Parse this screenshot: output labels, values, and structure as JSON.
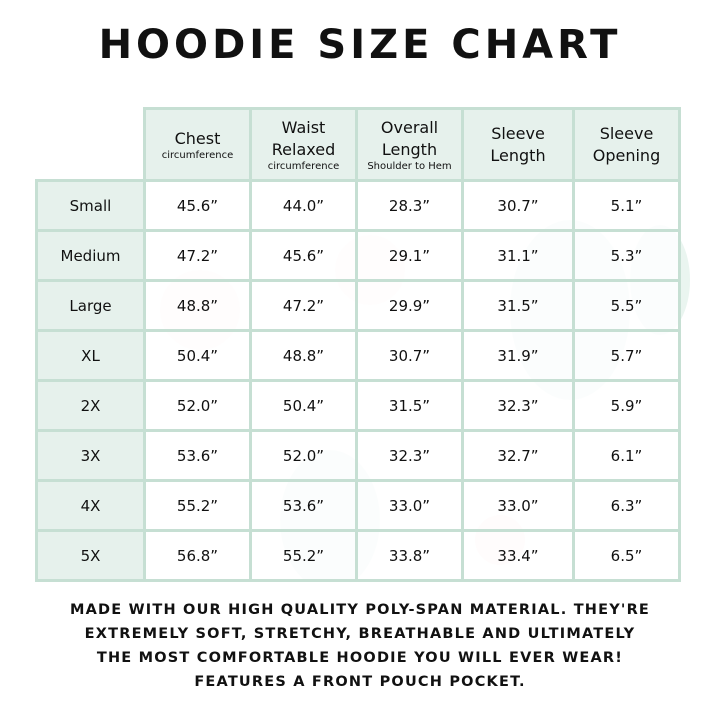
{
  "title": "HOODIE SIZE CHART",
  "colors": {
    "border": "#c6dfd3",
    "header_bg": "#e6f1ec"
  },
  "columns": [
    {
      "label": "Chest",
      "sub": "circumference"
    },
    {
      "label": "Waist Relaxed",
      "sub": "circumference"
    },
    {
      "label": "Overall Length",
      "sub": "Shoulder to Hem"
    },
    {
      "label": "Sleeve Length",
      "sub": ""
    },
    {
      "label": "Sleeve Opening",
      "sub": ""
    }
  ],
  "rows": [
    {
      "size": "Small",
      "values": [
        "45.6”",
        "44.0”",
        "28.3”",
        "30.7”",
        "5.1”"
      ]
    },
    {
      "size": "Medium",
      "values": [
        "47.2”",
        "45.6”",
        "29.1”",
        "31.1”",
        "5.3”"
      ]
    },
    {
      "size": "Large",
      "values": [
        "48.8”",
        "47.2”",
        "29.9”",
        "31.5”",
        "5.5”"
      ]
    },
    {
      "size": "XL",
      "values": [
        "50.4”",
        "48.8”",
        "30.7”",
        "31.9”",
        "5.7”"
      ]
    },
    {
      "size": "2X",
      "values": [
        "52.0”",
        "50.4”",
        "31.5”",
        "32.3”",
        "5.9”"
      ]
    },
    {
      "size": "3X",
      "values": [
        "53.6”",
        "52.0”",
        "32.3”",
        "32.7”",
        "6.1”"
      ]
    },
    {
      "size": "4X",
      "values": [
        "55.2”",
        "53.6”",
        "33.0”",
        "33.0”",
        "6.3”"
      ]
    },
    {
      "size": "5X",
      "values": [
        "56.8”",
        "55.2”",
        "33.8”",
        "33.4”",
        "6.5”"
      ]
    }
  ],
  "footer": [
    "MADE WITH OUR HIGH QUALITY POLY-SPAN MATERIAL. THEY'RE",
    "EXTREMELY SOFT, STRETCHY, BREATHABLE AND ULTIMATELY",
    "THE MOST COMFORTABLE HOODIE YOU WILL EVER WEAR!",
    "FEATURES A FRONT POUCH POCKET."
  ]
}
